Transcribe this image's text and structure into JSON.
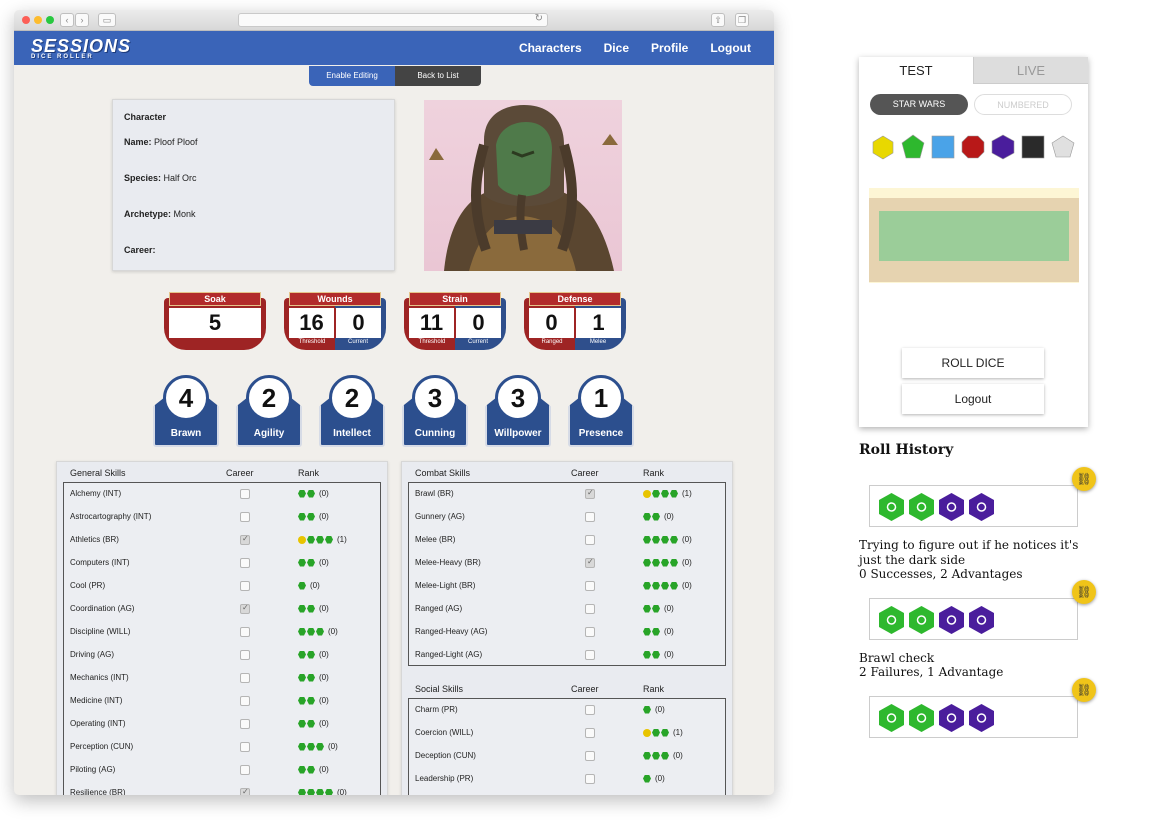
{
  "nav": {
    "logo": "SESSIONS",
    "logo_sub": "DICE ROLLER",
    "links": [
      "Characters",
      "Dice",
      "Profile",
      "Logout"
    ]
  },
  "toolbar": {
    "edit_label": "Enable Editing",
    "back_label": "Back to List"
  },
  "character": {
    "heading": "Character",
    "name_label": "Name:",
    "name": "Ploof Ploof",
    "species_label": "Species:",
    "species": "Half Orc",
    "archetype_label": "Archetype:",
    "archetype": "Monk",
    "career_label": "Career:",
    "career": ""
  },
  "derived": [
    {
      "title": "Soak",
      "values": [
        "5"
      ],
      "subs": []
    },
    {
      "title": "Wounds",
      "values": [
        "16",
        "0"
      ],
      "subs": [
        "Threshold",
        "Current"
      ]
    },
    {
      "title": "Strain",
      "values": [
        "11",
        "0"
      ],
      "subs": [
        "Threshold",
        "Current"
      ]
    },
    {
      "title": "Defense",
      "values": [
        "0",
        "1"
      ],
      "subs": [
        "Ranged",
        "Melee"
      ]
    }
  ],
  "characteristics": [
    {
      "value": "4",
      "label": "Brawn"
    },
    {
      "value": "2",
      "label": "Agility"
    },
    {
      "value": "2",
      "label": "Intellect"
    },
    {
      "value": "3",
      "label": "Cunning"
    },
    {
      "value": "3",
      "label": "Willpower"
    },
    {
      "value": "1",
      "label": "Presence"
    }
  ],
  "general_skills": {
    "title": "General Skills",
    "career_col": "Career",
    "rank_col": "Rank",
    "rows": [
      {
        "name": "Alchemy (INT)",
        "career": false,
        "gems": "gg",
        "rank": "(0)"
      },
      {
        "name": "Astrocartography (INT)",
        "career": false,
        "gems": "gg",
        "rank": "(0)"
      },
      {
        "name": "Athletics (BR)",
        "career": true,
        "gems": "yggg",
        "rank": "(1)"
      },
      {
        "name": "Computers (INT)",
        "career": false,
        "gems": "gg",
        "rank": "(0)"
      },
      {
        "name": "Cool (PR)",
        "career": false,
        "gems": "g",
        "rank": "(0)"
      },
      {
        "name": "Coordination (AG)",
        "career": true,
        "gems": "gg",
        "rank": "(0)"
      },
      {
        "name": "Discipline (WILL)",
        "career": false,
        "gems": "ggg",
        "rank": "(0)"
      },
      {
        "name": "Driving (AG)",
        "career": false,
        "gems": "gg",
        "rank": "(0)"
      },
      {
        "name": "Mechanics (INT)",
        "career": false,
        "gems": "gg",
        "rank": "(0)"
      },
      {
        "name": "Medicine (INT)",
        "career": false,
        "gems": "gg",
        "rank": "(0)"
      },
      {
        "name": "Operating (INT)",
        "career": false,
        "gems": "gg",
        "rank": "(0)"
      },
      {
        "name": "Perception (CUN)",
        "career": false,
        "gems": "ggg",
        "rank": "(0)"
      },
      {
        "name": "Piloting (AG)",
        "career": false,
        "gems": "gg",
        "rank": "(0)"
      },
      {
        "name": "Resilience (BR)",
        "career": true,
        "gems": "gggg",
        "rank": "(0)"
      }
    ]
  },
  "combat_skills": {
    "title": "Combat Skills",
    "career_col": "Career",
    "rank_col": "Rank",
    "rows": [
      {
        "name": "Brawl (BR)",
        "career": true,
        "gems": "yggg",
        "rank": "(1)"
      },
      {
        "name": "Gunnery (AG)",
        "career": false,
        "gems": "gg",
        "rank": "(0)"
      },
      {
        "name": "Melee (BR)",
        "career": false,
        "gems": "gggg",
        "rank": "(0)"
      },
      {
        "name": "Melee-Heavy (BR)",
        "career": true,
        "gems": "gggg",
        "rank": "(0)"
      },
      {
        "name": "Melee-Light (BR)",
        "career": false,
        "gems": "gggg",
        "rank": "(0)"
      },
      {
        "name": "Ranged (AG)",
        "career": false,
        "gems": "gg",
        "rank": "(0)"
      },
      {
        "name": "Ranged-Heavy (AG)",
        "career": false,
        "gems": "gg",
        "rank": "(0)"
      },
      {
        "name": "Ranged-Light (AG)",
        "career": false,
        "gems": "gg",
        "rank": "(0)"
      }
    ]
  },
  "social_skills": {
    "title": "Social Skills",
    "career_col": "Career",
    "rank_col": "Rank",
    "rows": [
      {
        "name": "Charm (PR)",
        "career": false,
        "gems": "g",
        "rank": "(0)"
      },
      {
        "name": "Coercion (WILL)",
        "career": false,
        "gems": "ygg",
        "rank": "(1)"
      },
      {
        "name": "Deception (CUN)",
        "career": false,
        "gems": "ggg",
        "rank": "(0)"
      },
      {
        "name": "Leadership (PR)",
        "career": false,
        "gems": "g",
        "rank": "(0)"
      }
    ]
  },
  "dice_panel": {
    "tabs": [
      "TEST",
      "LIVE"
    ],
    "modes": [
      "STAR WARS",
      "NUMBERED"
    ],
    "dice": [
      "yellow-die-icon",
      "green-die-icon",
      "blue-die-icon",
      "red-die-icon",
      "purple-die-icon",
      "black-die-icon",
      "white-die-icon"
    ],
    "dice_colors": [
      "#e8d800",
      "#2eb82e",
      "#4aa3e8",
      "#b81818",
      "#4a1d9c",
      "#2a2a2a",
      "#e0e0e0"
    ],
    "roll_label": "ROLL DICE",
    "logout_label": "Logout"
  },
  "roll_history": {
    "title": "Roll History",
    "entries": [
      {
        "dice": [
          "green",
          "green",
          "purple",
          "purple"
        ],
        "text": "Trying to figure out if he notices it's just the dark side",
        "result": "0 Successes, 2 Advantages"
      },
      {
        "dice": [
          "green",
          "green",
          "purple",
          "purple"
        ],
        "text": "Brawl check",
        "result": "2 Failures, 1 Advantage"
      },
      {
        "dice": [
          "green",
          "green",
          "purple",
          "purple"
        ],
        "text": "",
        "result": ""
      }
    ]
  }
}
